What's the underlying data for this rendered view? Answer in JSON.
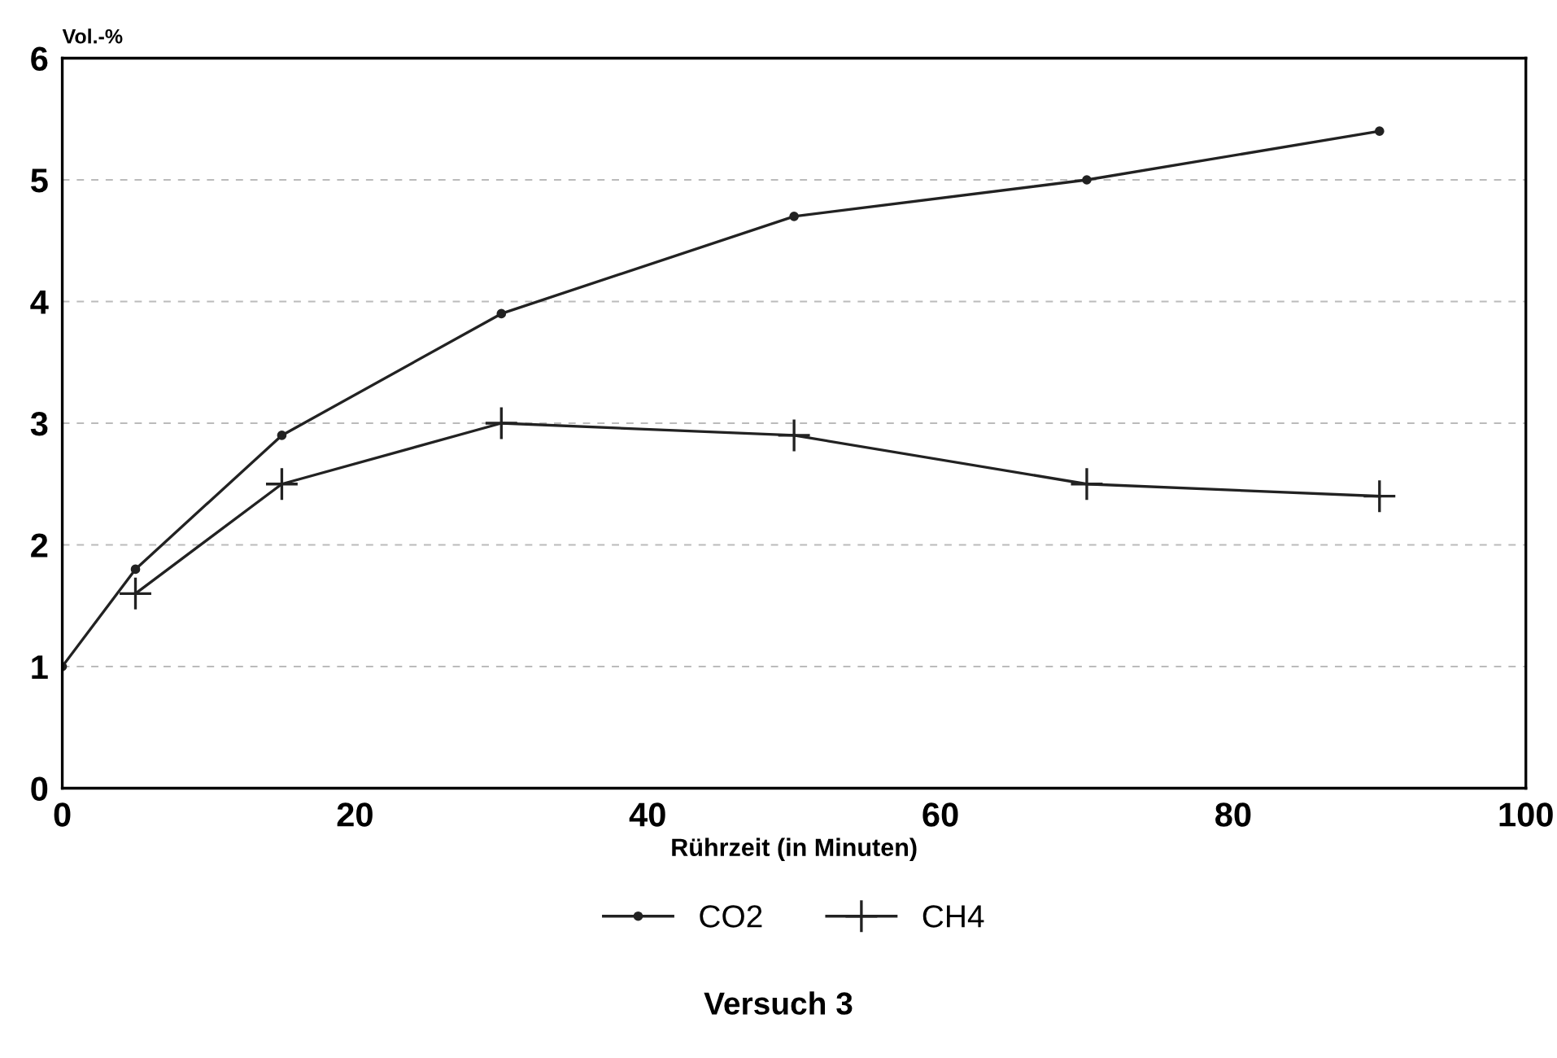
{
  "chart_data": {
    "type": "line",
    "title": "Versuch 3",
    "xlabel": "Rührzeit (in Minuten)",
    "ylabel": "Vol.-%",
    "xlim": [
      0,
      100
    ],
    "xticks": [
      0,
      20,
      40,
      60,
      80,
      100
    ],
    "ylim": [
      0,
      6
    ],
    "yticks": [
      0,
      1,
      2,
      3,
      4,
      5,
      6
    ],
    "grid": "y",
    "legend": "bottom",
    "series": [
      {
        "name": "CO2",
        "color": "#222222",
        "marker": "circle",
        "x": [
          0,
          5,
          15,
          30,
          50,
          70,
          90
        ],
        "values": [
          1,
          1.8,
          2.9,
          3.9,
          4.7,
          5.0,
          5.4
        ]
      },
      {
        "name": "CH4",
        "color": "#222222",
        "marker": "cross",
        "x": [
          5,
          15,
          30,
          50,
          70,
          90
        ],
        "values": [
          1.6,
          2.5,
          3.0,
          2.9,
          2.5,
          2.4
        ]
      }
    ]
  }
}
